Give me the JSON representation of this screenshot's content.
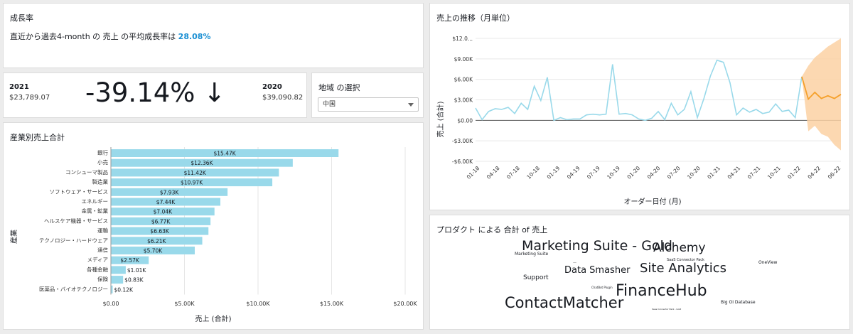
{
  "growth": {
    "title": "成長率",
    "line_prefix": "直近から過去4-month の 売上 の平均成長率は",
    "rate": "28.08%"
  },
  "kpi": {
    "current_year": "2021",
    "current_value": "$23,789.07",
    "change": "-39.14% ↓",
    "prior_year": "2020",
    "prior_value": "$39,090.82"
  },
  "region": {
    "title": "地域 の選択",
    "selected": "中国"
  },
  "industry": {
    "title": "産業別売上合計"
  },
  "trend": {
    "title": "売上の推移（月単位）"
  },
  "cloud": {
    "title": "プロダクト による 合計 of 売上",
    "words": [
      "Marketing Suite - Gold",
      "Alchemy",
      "Marketing Suite",
      "SaaS Connector Pack",
      "OneView",
      "Site Analytics",
      "Data Smasher",
      "Support",
      "ChatBot Plugin",
      "FinanceHub",
      "ContactMatcher",
      "Big OI Database",
      "Saas Connector Pack - Gold",
      "—"
    ]
  },
  "chart_data": [
    {
      "type": "bar",
      "orientation": "horizontal",
      "title": "",
      "xlabel": "売上 (合計)",
      "ylabel": "産業",
      "categories": [
        "銀行",
        "小売",
        "コンシューマ製品",
        "製造業",
        "ソフトウェア・サービス",
        "エネルギー",
        "金属・鉱業",
        "ヘルスケア機器・サービス",
        "運輸",
        "テクノロジー・ハードウェア",
        "通信",
        "メディア",
        "各種金融",
        "保険",
        "医薬品・バイオテクノロジー"
      ],
      "values": [
        15.47,
        12.36,
        11.42,
        10.97,
        7.93,
        7.44,
        7.04,
        6.77,
        6.63,
        6.21,
        5.7,
        2.57,
        1.01,
        0.83,
        0.12
      ],
      "value_labels": [
        "$15.47K",
        "$12.36K",
        "$11.42K",
        "$10.97K",
        "$7.93K",
        "$7.44K",
        "$7.04K",
        "$6.77K",
        "$6.63K",
        "$6.21K",
        "$5.70K",
        "$2.57K",
        "$1.01K",
        "$0.83K",
        "$0.12K"
      ],
      "xlim": [
        0,
        20
      ],
      "ticks": [
        "$0.00",
        "$5.00K",
        "$10.00K",
        "$15.00K",
        "$20.00K"
      ],
      "bar_color": "#99d9ea"
    },
    {
      "type": "line",
      "title": "",
      "xlabel": "オーダー日付 (月)",
      "ylabel": "売上 (合計)",
      "ylim": [
        -6,
        12
      ],
      "yticks": [
        "$12.0...",
        "$9.00K",
        "$6.00K",
        "$3.00K",
        "$0.00",
        "-$3.00K",
        "-$6.00K"
      ],
      "xticks": [
        "01-18",
        "04-18",
        "07-18",
        "10-18",
        "01-19",
        "04-19",
        "07-19",
        "10-19",
        "01-20",
        "04-20",
        "07-20",
        "10-20",
        "01-21",
        "04-21",
        "07-21",
        "10-21",
        "01-22",
        "04-22",
        "06-22"
      ],
      "series": [
        {
          "kind": "actual",
          "color": "#99d9ea",
          "values": [
            1.8,
            0.1,
            1.3,
            1.7,
            1.6,
            1.9,
            1.0,
            2.5,
            1.6,
            5.0,
            2.9,
            6.3,
            0.0,
            0.4,
            0.1,
            0.2,
            0.2,
            0.8,
            0.9,
            0.8,
            0.9,
            8.2,
            0.9,
            1.0,
            0.8,
            0.2,
            0.0,
            0.3,
            1.3,
            0.1,
            2.5,
            0.8,
            1.6,
            4.2,
            0.4,
            3.2,
            6.5,
            8.8,
            8.5,
            5.5,
            0.8,
            1.8,
            1.2,
            1.6,
            1.0,
            1.2,
            2.4,
            1.3,
            1.5,
            0.4,
            6.4
          ]
        },
        {
          "kind": "forecast",
          "color": "#f5a02a",
          "start_index": 50,
          "values": [
            6.4,
            3.1,
            4.1,
            3.2,
            3.6,
            3.2,
            3.8
          ],
          "upper": [
            6.4,
            8.0,
            9.2,
            10.0,
            10.8,
            11.4,
            12.0
          ],
          "lower": [
            6.4,
            -1.6,
            -0.8,
            -2.0,
            -2.4,
            -3.6,
            -4.4
          ]
        }
      ]
    }
  ]
}
